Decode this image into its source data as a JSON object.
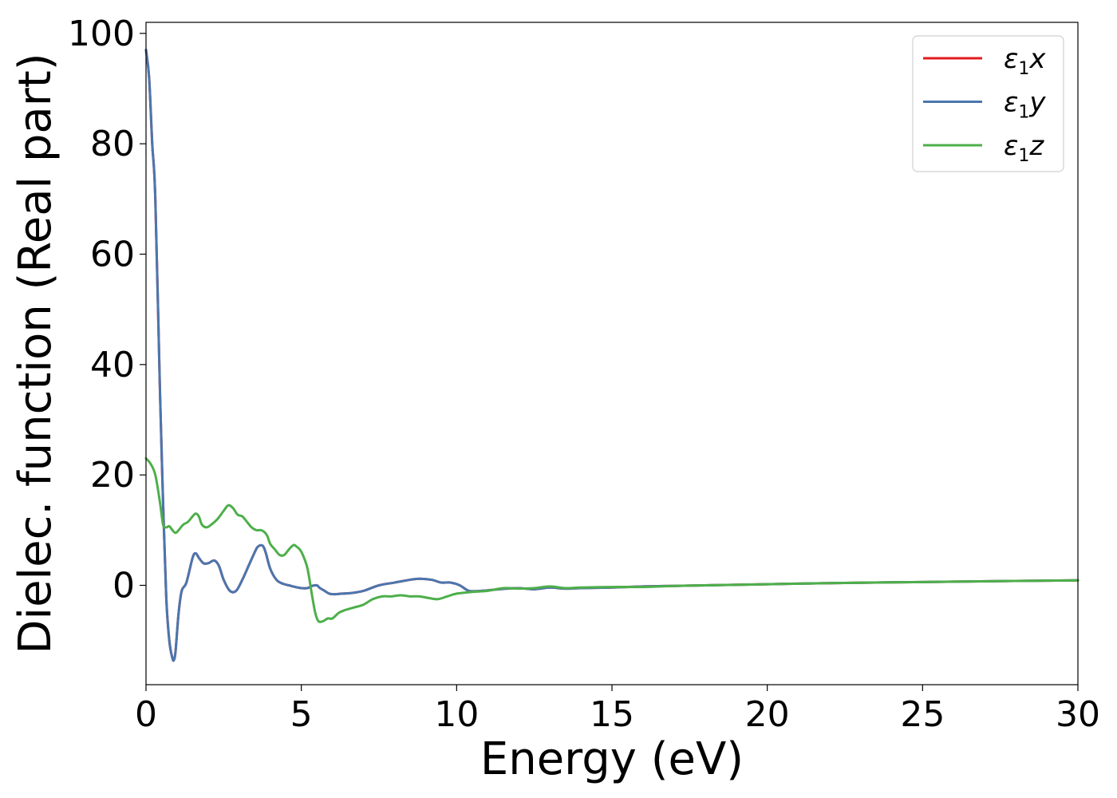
{
  "chart_data": {
    "type": "line",
    "title": "",
    "xlabel": "Energy (eV)",
    "ylabel": "Dielec. function (Real part)",
    "xlim": [
      0,
      30
    ],
    "ylim": [
      -18,
      102
    ],
    "xticks": [
      0,
      5,
      10,
      15,
      20,
      25,
      30
    ],
    "yticks": [
      0,
      20,
      40,
      60,
      80,
      100
    ],
    "xtick_labels": [
      "0",
      "5",
      "10",
      "15",
      "20",
      "25",
      "30"
    ],
    "ytick_labels": [
      "0",
      "20",
      "40",
      "60",
      "80",
      "100"
    ],
    "grid": false,
    "legend_position": "top-right",
    "series": [
      {
        "name": "ε1x",
        "legend_symbol": "ε",
        "legend_sub": "1",
        "legend_var": "x",
        "color": "#e41a1c",
        "x": [
          0,
          0.1,
          0.2,
          0.3,
          0.45,
          0.55,
          0.65,
          0.75,
          0.85,
          0.9,
          0.95,
          1.05,
          1.15,
          1.3,
          1.5,
          1.6,
          1.7,
          1.85,
          2.0,
          2.2,
          2.35,
          2.5,
          2.7,
          2.9,
          3.1,
          3.3,
          3.5,
          3.6,
          3.75,
          3.85,
          4.0,
          4.2,
          4.4,
          4.6,
          4.8,
          5.0,
          5.2,
          5.35,
          5.5,
          5.6,
          5.75,
          5.9,
          6.1,
          6.3,
          6.6,
          7.0,
          7.5,
          8.0,
          8.5,
          8.8,
          9.2,
          9.5,
          9.8,
          10.1,
          10.4,
          10.8,
          11.2,
          11.6,
          12.0,
          12.5,
          13.0,
          13.5,
          14.0,
          15.0,
          16.0,
          17.0,
          18.0,
          20.0,
          22.0,
          25.0,
          28.0,
          30.0
        ],
        "values": [
          97,
          92,
          80,
          70,
          35,
          15,
          -2,
          -10,
          -13.2,
          -13.5,
          -12,
          -5,
          -1,
          0.5,
          5,
          5.8,
          5.0,
          4.0,
          4.0,
          4.5,
          3.5,
          1.0,
          -1.0,
          -1.0,
          1.0,
          3.5,
          6.0,
          7.0,
          7.2,
          6.0,
          3.0,
          1.0,
          0.3,
          0.0,
          -0.3,
          -0.5,
          -0.5,
          -0.1,
          0.0,
          -0.5,
          -1.0,
          -1.5,
          -1.6,
          -1.5,
          -1.4,
          -1.0,
          0.0,
          0.5,
          1.0,
          1.2,
          1.0,
          0.5,
          0.5,
          0.0,
          -1.0,
          -1.0,
          -0.8,
          -0.6,
          -0.5,
          -0.7,
          -0.4,
          -0.6,
          -0.5,
          -0.4,
          -0.2,
          -0.1,
          0.0,
          0.2,
          0.4,
          0.6,
          0.8,
          0.9
        ]
      },
      {
        "name": "ε1y",
        "legend_symbol": "ε",
        "legend_sub": "1",
        "legend_var": "y",
        "color": "#4a76ae",
        "x": [
          0,
          0.1,
          0.2,
          0.3,
          0.45,
          0.55,
          0.65,
          0.75,
          0.85,
          0.9,
          0.95,
          1.05,
          1.15,
          1.3,
          1.5,
          1.6,
          1.7,
          1.85,
          2.0,
          2.2,
          2.35,
          2.5,
          2.7,
          2.9,
          3.1,
          3.3,
          3.5,
          3.6,
          3.75,
          3.85,
          4.0,
          4.2,
          4.4,
          4.6,
          4.8,
          5.0,
          5.2,
          5.35,
          5.5,
          5.6,
          5.75,
          5.9,
          6.1,
          6.3,
          6.6,
          7.0,
          7.5,
          8.0,
          8.5,
          8.8,
          9.2,
          9.5,
          9.8,
          10.1,
          10.4,
          10.8,
          11.2,
          11.6,
          12.0,
          12.5,
          13.0,
          13.5,
          14.0,
          15.0,
          16.0,
          17.0,
          18.0,
          20.0,
          22.0,
          25.0,
          28.0,
          30.0
        ],
        "values": [
          97,
          92,
          80,
          70,
          35,
          15,
          -2,
          -10,
          -13.2,
          -13.5,
          -12,
          -5,
          -1,
          0.5,
          5,
          5.8,
          5.0,
          4.0,
          4.0,
          4.5,
          3.5,
          1.0,
          -1.0,
          -1.0,
          1.0,
          3.5,
          6.0,
          7.0,
          7.2,
          6.0,
          3.0,
          1.0,
          0.3,
          0.0,
          -0.3,
          -0.5,
          -0.5,
          -0.1,
          0.0,
          -0.5,
          -1.0,
          -1.5,
          -1.6,
          -1.5,
          -1.4,
          -1.0,
          0.0,
          0.5,
          1.0,
          1.2,
          1.0,
          0.5,
          0.5,
          0.0,
          -1.0,
          -1.0,
          -0.8,
          -0.6,
          -0.5,
          -0.7,
          -0.4,
          -0.6,
          -0.5,
          -0.4,
          -0.2,
          -0.1,
          0.0,
          0.2,
          0.4,
          0.6,
          0.8,
          0.9
        ]
      },
      {
        "name": "ε1z",
        "legend_symbol": "ε",
        "legend_sub": "1",
        "legend_var": "z",
        "color": "#4daf4a",
        "x": [
          0,
          0.15,
          0.3,
          0.45,
          0.55,
          0.65,
          0.75,
          0.85,
          0.95,
          1.05,
          1.2,
          1.35,
          1.5,
          1.6,
          1.7,
          1.8,
          1.95,
          2.1,
          2.3,
          2.5,
          2.65,
          2.8,
          2.95,
          3.1,
          3.25,
          3.4,
          3.55,
          3.7,
          3.8,
          3.9,
          4.0,
          4.15,
          4.3,
          4.45,
          4.6,
          4.75,
          4.85,
          4.95,
          5.05,
          5.2,
          5.35,
          5.45,
          5.55,
          5.7,
          5.85,
          6.0,
          6.2,
          6.4,
          6.7,
          7.0,
          7.3,
          7.6,
          7.9,
          8.2,
          8.5,
          8.8,
          9.1,
          9.4,
          9.7,
          10.0,
          10.5,
          11.0,
          11.5,
          12.0,
          12.5,
          13.0,
          13.5,
          14.0,
          15.0,
          16.0,
          17.0,
          18.0,
          20.0,
          22.0,
          25.0,
          28.0,
          30.0
        ],
        "values": [
          23,
          22,
          20,
          15,
          11,
          10.5,
          10.7,
          10,
          9.5,
          10,
          11,
          11.5,
          12.5,
          13,
          12.5,
          11,
          10.5,
          11,
          12,
          13.5,
          14.5,
          14,
          12.8,
          12.5,
          11.5,
          10.5,
          10,
          10,
          9.7,
          9,
          7.5,
          6.5,
          5.5,
          5.5,
          6.5,
          7.3,
          7.0,
          6.5,
          5.5,
          3.0,
          -2.0,
          -5.0,
          -6.5,
          -6.5,
          -6.0,
          -6.0,
          -5.0,
          -4.5,
          -4.0,
          -3.5,
          -2.5,
          -2.0,
          -2.0,
          -1.8,
          -2.0,
          -2.0,
          -2.3,
          -2.5,
          -2.0,
          -1.5,
          -1.2,
          -1.0,
          -0.5,
          -0.6,
          -0.5,
          -0.2,
          -0.5,
          -0.4,
          -0.3,
          -0.3,
          -0.1,
          0.0,
          0.2,
          0.4,
          0.6,
          0.8,
          0.9
        ]
      }
    ]
  }
}
